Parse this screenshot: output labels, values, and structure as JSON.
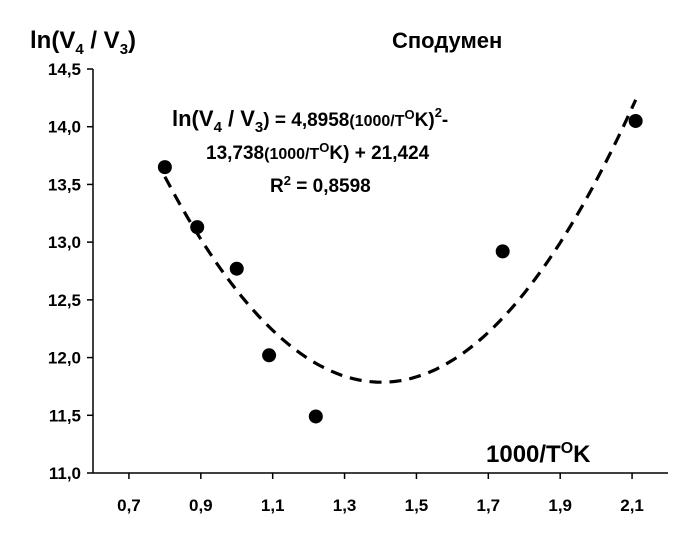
{
  "chart_data": {
    "type": "scatter",
    "title": "Сподумен",
    "ylabel": {
      "prefix": "ln(V",
      "sub1": "4",
      "mid": " / V",
      "sub2": "3",
      "suffix": ")"
    },
    "xlabel": {
      "prefix": "1000/T",
      "sup": "O",
      "suffix": "K"
    },
    "xlim": [
      0.6,
      2.2
    ],
    "ylim": [
      11.0,
      14.5
    ],
    "x_ticks": [
      "0,7",
      "0,9",
      "1,1",
      "1,3",
      "1,5",
      "1,7",
      "1,9",
      "2,1"
    ],
    "x_tick_values": [
      0.7,
      0.9,
      1.1,
      1.3,
      1.5,
      1.7,
      1.9,
      2.1
    ],
    "y_ticks": [
      "11,0",
      "11,5",
      "12,0",
      "12,5",
      "13,0",
      "13,5",
      "14,0",
      "14,5"
    ],
    "y_tick_values": [
      11.0,
      11.5,
      12.0,
      12.5,
      13.0,
      13.5,
      14.0,
      14.5
    ],
    "points": [
      {
        "x": 0.8,
        "y": 13.65
      },
      {
        "x": 0.89,
        "y": 13.13
      },
      {
        "x": 1.0,
        "y": 12.77
      },
      {
        "x": 1.09,
        "y": 12.02
      },
      {
        "x": 1.22,
        "y": 11.49
      },
      {
        "x": 1.74,
        "y": 12.92
      },
      {
        "x": 2.11,
        "y": 14.05
      }
    ],
    "trendline": {
      "type": "polynomial",
      "coefficients": [
        4.8958,
        -13.738,
        21.424
      ],
      "x_range": [
        0.8,
        2.11
      ],
      "style": "dashed"
    },
    "equation": {
      "line1_prefix": "ln(V",
      "line1_sub1": "4",
      "line1_mid": " / V",
      "line1_sub2": "3",
      "line1_eq": ") = 4,8958",
      "line1_term": "(1000/T",
      "line1_sup": "O",
      "line1_k": "K)",
      "line1_exp": "2",
      "line1_tail": "-",
      "line2_coef": "13,738",
      "line2_term": "(1000/T",
      "line2_sup": "O",
      "line2_k": "K) + 21,424",
      "r2_label": "R",
      "r2_exp": "2",
      "r2_value": " = 0,8598"
    },
    "grid": false,
    "legend": "none"
  }
}
